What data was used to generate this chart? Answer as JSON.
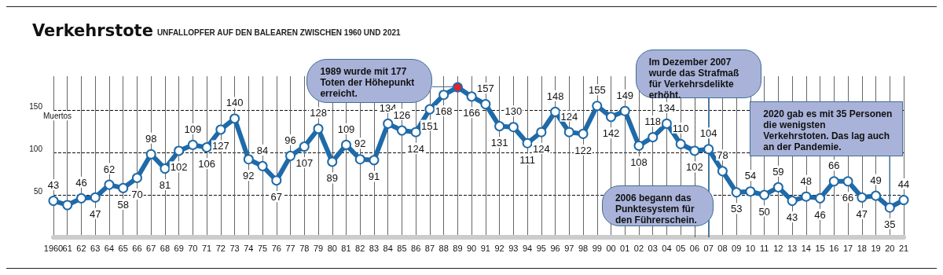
{
  "chart_data": {
    "type": "line",
    "title": "Verkehrstote",
    "subtitle": "UNFALLOPFER AUF DEN BALEAREN ZWISCHEN 1960 UND 2021",
    "ylabel": "Muertos",
    "categories": [
      "1960",
      "61",
      "62",
      "63",
      "64",
      "65",
      "66",
      "67",
      "68",
      "69",
      "70",
      "71",
      "72",
      "73",
      "74",
      "75",
      "76",
      "77",
      "78",
      "79",
      "80",
      "81",
      "82",
      "83",
      "84",
      "85",
      "86",
      "87",
      "88",
      "89",
      "90",
      "91",
      "92",
      "93",
      "94",
      "95",
      "96",
      "97",
      "98",
      "99",
      "00",
      "01",
      "02",
      "03",
      "04",
      "05",
      "06",
      "07",
      "08",
      "09",
      "10",
      "11",
      "12",
      "13",
      "14",
      "15",
      "16",
      "17",
      "18",
      "19",
      "20",
      "21"
    ],
    "series": [
      {
        "color": "#1f6aa8",
        "values": [
          43,
          38,
          46,
          47,
          62,
          58,
          70,
          98,
          81,
          102,
          109,
          106,
          127,
          140,
          92,
          84,
          67,
          96,
          107,
          128,
          89,
          109,
          92,
          91,
          134,
          126,
          124,
          151,
          168,
          177,
          166,
          157,
          131,
          130,
          111,
          124,
          148,
          124,
          122,
          155,
          142,
          149,
          108,
          118,
          134,
          110,
          102,
          104,
          78,
          53,
          54,
          50,
          59,
          43,
          48,
          46,
          66,
          66,
          47,
          49,
          35,
          44
        ],
        "colors": [
          "#ffffff",
          "#ffffff",
          "#ffffff",
          "#ffffff",
          "#ffffff",
          "#ffffff",
          "#ffffff",
          "#ffffff",
          "#ffffff",
          "#ffffff",
          "#ffffff",
          "#ffffff",
          "#ffffff",
          "#ffffff",
          "#ffffff",
          "#ffffff",
          "#ffffff",
          "#ffffff",
          "#ffffff",
          "#ffffff",
          "#ffffff",
          "#ffffff",
          "#ffffff",
          "#ffffff",
          "#ffffff",
          "#ffffff",
          "#ffffff",
          "#ffffff",
          "#ffffff",
          "#e8202a",
          "#ffffff",
          "#ffffff",
          "#ffffff",
          "#ffffff",
          "#ffffff",
          "#ffffff",
          "#ffffff",
          "#ffffff",
          "#ffffff",
          "#ffffff",
          "#ffffff",
          "#ffffff",
          "#ffffff",
          "#ffffff",
          "#ffffff",
          "#ffffff",
          "#ffffff",
          "#ffffff",
          "#ffffff",
          "#ffffff",
          "#ffffff",
          "#ffffff",
          "#ffffff",
          "#ffffff",
          "#ffffff",
          "#ffffff",
          "#ffffff",
          "#ffffff",
          "#ffffff",
          "#ffffff",
          "#ffffff",
          "#ffffff"
        ],
        "value_labels": [
          "43",
          null,
          "46",
          "47",
          "62",
          "58",
          "70",
          "98",
          "81",
          "102",
          "109",
          "106",
          "127",
          "140",
          "92",
          "84",
          "67",
          "96",
          "107",
          "128",
          "89",
          "109",
          "92",
          "91",
          "134",
          "126",
          "124",
          "151",
          "168",
          null,
          "166",
          "157",
          "131",
          "130",
          "111",
          "124",
          "148",
          "124",
          "122",
          "155",
          "142",
          "149",
          "108",
          "118",
          "134",
          "110",
          "102",
          "104",
          "78",
          "53",
          "54",
          "50",
          "59",
          "43",
          "48",
          "46",
          "66",
          "66",
          "47",
          "49",
          "35",
          "44"
        ]
      }
    ],
    "ylim": [
      0,
      190
    ],
    "yticks": [
      50,
      100,
      150
    ],
    "grid": true,
    "marker": "circle",
    "line_style": "solid",
    "annotations": [
      "1989 wurde mit 177 Toten der Höhepunkt erreicht.",
      {
        "text": "2020 gab es mit 35 Personen die wenigsten Verkehrstoten. Das lag auch an der Pandemie.",
        "x": "20",
        "y": 35
      }
    ],
    "ref_lines": [
      {
        "axis": "x",
        "value": "06",
        "label": "2006 begann das Punktesystem für den Führerschein.",
        "line_style": "dashed",
        "color": "#555555"
      },
      {
        "axis": "x",
        "value": "07",
        "label": "Im Dezember 2007 wurde das Strafmaß für Verkehrsdelikte erhöht.",
        "line_style": "solid",
        "color": "#4a7aa0"
      }
    ]
  }
}
